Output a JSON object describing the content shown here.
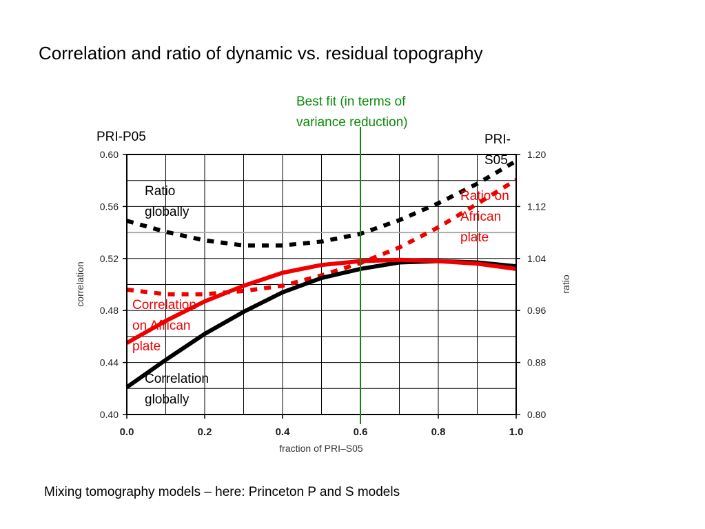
{
  "slide": {
    "title": "Correlation and ratio of dynamic vs. residual topography",
    "caption": "Mixing tomography models – here: Princeton P and S models"
  },
  "labels": {
    "left_model": "PRI-P05",
    "right_model_line1": "PRI-",
    "right_model_line2": "S05",
    "best_fit_line1": "Best fit (in terms of",
    "best_fit_line2": "variance reduction)",
    "ratio_global_line1": "Ratio",
    "ratio_global_line2": "globally",
    "ratio_africa_line1": "Ratio on",
    "ratio_africa_line2": "African",
    "ratio_africa_line3": "plate",
    "corr_africa_line1": "Correlation",
    "corr_africa_line2": "on African",
    "corr_africa_line3": "plate",
    "corr_global_line1": "Correlation",
    "corr_global_line2": "globally"
  },
  "colors": {
    "global": "#000000",
    "african": "#ee0000",
    "best_fit": "#0a8a0a",
    "grid": "#000000",
    "reference_line": "#aaaaaa"
  },
  "chart_data": {
    "type": "line",
    "xlabel": "fraction of PRI–S05",
    "ylabel_left": "correlation",
    "ylabel_right": "ratio",
    "xlim": [
      0.0,
      1.0
    ],
    "ylim_left": [
      0.4,
      0.6
    ],
    "ylim_right": [
      0.8,
      1.2
    ],
    "x_ticks": [
      "0.0",
      "0.2",
      "0.4",
      "0.6",
      "0.8",
      "1.0"
    ],
    "y_ticks_left": [
      "0.40",
      "0.44",
      "0.48",
      "0.52",
      "0.56",
      "0.60"
    ],
    "y_ticks_right": [
      "0.80",
      "0.88",
      "0.96",
      "1.04",
      "1.12",
      "1.20"
    ],
    "grid": true,
    "reference_ratio": 1.08,
    "best_fit_x": 0.6,
    "x": [
      0.0,
      0.1,
      0.2,
      0.3,
      0.4,
      0.5,
      0.6,
      0.7,
      0.8,
      0.9,
      1.0
    ],
    "series": [
      {
        "axis": "left",
        "style": "solid",
        "group": "global",
        "values": [
          0.421,
          0.442,
          0.462,
          0.479,
          0.494,
          0.505,
          0.512,
          0.517,
          0.518,
          0.517,
          0.514
        ]
      },
      {
        "axis": "left",
        "style": "solid",
        "group": "african",
        "values": [
          0.455,
          0.472,
          0.487,
          0.499,
          0.509,
          0.515,
          0.518,
          0.519,
          0.518,
          0.516,
          0.512
        ]
      },
      {
        "axis": "right",
        "style": "dashed",
        "group": "global",
        "values": [
          1.098,
          1.081,
          1.068,
          1.06,
          1.06,
          1.066,
          1.078,
          1.099,
          1.125,
          1.155,
          1.19
        ]
      },
      {
        "axis": "right",
        "style": "dashed",
        "group": "african",
        "values": [
          0.992,
          0.985,
          0.985,
          0.99,
          0.998,
          1.014,
          1.033,
          1.057,
          1.088,
          1.124,
          1.161
        ]
      }
    ]
  }
}
